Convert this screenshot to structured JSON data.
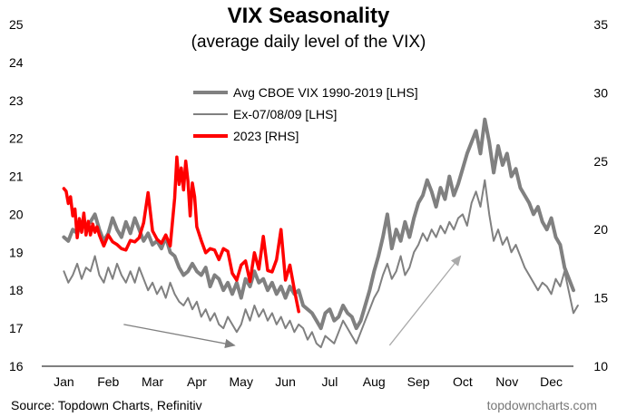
{
  "chart_data": {
    "type": "line",
    "title": "VIX Seasonality",
    "subtitle": "(average daily level of the VIX)",
    "x_categories": [
      "Jan",
      "Feb",
      "Mar",
      "Apr",
      "May",
      "Jun",
      "Jul",
      "Aug",
      "Sep",
      "Oct",
      "Nov",
      "Dec"
    ],
    "left_axis": {
      "ylim": [
        16,
        25
      ],
      "ticks": [
        16,
        17,
        18,
        19,
        20,
        21,
        22,
        23,
        24,
        25
      ]
    },
    "right_axis": {
      "ylim": [
        10,
        35
      ],
      "ticks": [
        10,
        15,
        20,
        25,
        30,
        35
      ]
    },
    "series": [
      {
        "name": "Avg CBOE VIX 1990-2019 [LHS]",
        "axis": "left",
        "color": "#808080",
        "width": 4,
        "x": [
          0,
          0.1,
          0.2,
          0.3,
          0.4,
          0.5,
          0.6,
          0.7,
          0.8,
          0.9,
          1.0,
          1.1,
          1.2,
          1.3,
          1.4,
          1.5,
          1.6,
          1.7,
          1.8,
          1.9,
          2.0,
          2.1,
          2.2,
          2.3,
          2.4,
          2.5,
          2.6,
          2.7,
          2.8,
          2.9,
          3.0,
          3.1,
          3.2,
          3.3,
          3.4,
          3.5,
          3.6,
          3.7,
          3.8,
          3.9,
          4.0,
          4.1,
          4.2,
          4.3,
          4.4,
          4.5,
          4.6,
          4.7,
          4.8,
          4.9,
          5.0,
          5.1,
          5.2,
          5.3,
          5.4,
          5.5,
          5.6,
          5.7,
          5.8,
          5.9,
          6.0,
          6.1,
          6.2,
          6.3,
          6.4,
          6.5,
          6.6,
          6.7,
          6.8,
          6.9,
          7.0,
          7.1,
          7.2,
          7.3,
          7.4,
          7.5,
          7.6,
          7.7,
          7.8,
          7.9,
          8.0,
          8.1,
          8.2,
          8.3,
          8.4,
          8.5,
          8.6,
          8.7,
          8.8,
          8.9,
          9.0,
          9.1,
          9.2,
          9.3,
          9.4,
          9.5,
          9.6,
          9.7,
          9.8,
          9.9,
          10.0,
          10.1,
          10.2,
          10.3,
          10.4,
          10.5,
          10.6,
          10.7,
          10.8,
          10.9,
          11.0,
          11.1,
          11.2,
          11.3,
          11.5
        ],
        "y": [
          19.4,
          19.3,
          19.6,
          19.5,
          19.8,
          19.7,
          19.8,
          20.0,
          19.6,
          19.3,
          19.5,
          19.9,
          19.6,
          19.4,
          19.8,
          19.5,
          19.9,
          19.6,
          19.3,
          19.5,
          19.2,
          19.3,
          19.1,
          19.4,
          19.0,
          18.9,
          18.6,
          18.4,
          18.5,
          18.7,
          18.5,
          18.4,
          18.6,
          18.1,
          18.4,
          18.3,
          18.0,
          18.2,
          17.9,
          18.2,
          17.8,
          18.3,
          18.1,
          18.5,
          18.2,
          18.3,
          18.0,
          18.2,
          17.9,
          18.1,
          17.8,
          18.1,
          17.9,
          18.0,
          17.6,
          17.5,
          17.4,
          17.2,
          17.0,
          17.4,
          17.5,
          17.2,
          17.3,
          17.6,
          17.4,
          17.3,
          17.0,
          17.2,
          17.6,
          18.0,
          18.5,
          18.9,
          19.4,
          20.0,
          19.1,
          19.6,
          19.3,
          19.8,
          19.4,
          19.9,
          20.3,
          20.5,
          20.9,
          20.6,
          20.2,
          20.7,
          20.4,
          21.0,
          20.5,
          20.8,
          21.2,
          21.6,
          21.9,
          22.2,
          21.6,
          22.5,
          21.9,
          21.1,
          21.8,
          21.3,
          21.6,
          21.0,
          21.2,
          20.7,
          20.5,
          20.3,
          20.0,
          20.2,
          19.8,
          19.6,
          19.9,
          19.4,
          19.2,
          18.6,
          18.0
        ]
      },
      {
        "name": "Ex-07/08/09 [LHS]",
        "axis": "left",
        "color": "#808080",
        "width": 2,
        "x": [
          0,
          0.1,
          0.2,
          0.3,
          0.4,
          0.5,
          0.6,
          0.7,
          0.8,
          0.9,
          1.0,
          1.1,
          1.2,
          1.3,
          1.4,
          1.5,
          1.6,
          1.7,
          1.8,
          1.9,
          2.0,
          2.1,
          2.2,
          2.3,
          2.4,
          2.5,
          2.6,
          2.7,
          2.8,
          2.9,
          3.0,
          3.1,
          3.2,
          3.3,
          3.4,
          3.5,
          3.6,
          3.7,
          3.8,
          3.9,
          4.0,
          4.1,
          4.2,
          4.3,
          4.4,
          4.5,
          4.6,
          4.7,
          4.8,
          4.9,
          5.0,
          5.1,
          5.2,
          5.3,
          5.4,
          5.5,
          5.6,
          5.7,
          5.8,
          5.9,
          6.0,
          6.1,
          6.2,
          6.3,
          6.4,
          6.5,
          6.6,
          6.7,
          6.8,
          6.9,
          7.0,
          7.1,
          7.2,
          7.3,
          7.4,
          7.5,
          7.6,
          7.7,
          7.8,
          7.9,
          8.0,
          8.1,
          8.2,
          8.3,
          8.4,
          8.5,
          8.6,
          8.7,
          8.8,
          8.9,
          9.0,
          9.1,
          9.2,
          9.3,
          9.4,
          9.5,
          9.6,
          9.7,
          9.8,
          9.9,
          10.0,
          10.1,
          10.2,
          10.3,
          10.4,
          10.5,
          10.6,
          10.7,
          10.8,
          10.9,
          11.0,
          11.1,
          11.2,
          11.3,
          11.5,
          11.6
        ],
        "y": [
          18.5,
          18.2,
          18.4,
          18.7,
          18.3,
          18.6,
          18.5,
          18.9,
          18.4,
          18.2,
          18.6,
          18.3,
          18.7,
          18.4,
          18.2,
          18.5,
          18.2,
          18.6,
          18.3,
          18.0,
          18.2,
          17.9,
          18.1,
          17.8,
          18.2,
          17.9,
          17.7,
          17.6,
          17.8,
          17.5,
          17.7,
          17.3,
          17.5,
          17.2,
          17.4,
          17.1,
          17.0,
          17.3,
          17.1,
          16.9,
          17.1,
          17.5,
          17.2,
          17.6,
          17.3,
          17.5,
          17.2,
          17.4,
          17.1,
          17.3,
          17.0,
          17.2,
          16.9,
          17.1,
          17.0,
          16.7,
          16.9,
          16.6,
          16.5,
          16.8,
          16.7,
          16.6,
          16.9,
          17.2,
          17.0,
          16.8,
          16.6,
          16.9,
          17.2,
          17.5,
          17.8,
          18.0,
          18.4,
          18.7,
          18.3,
          18.5,
          18.9,
          18.4,
          18.6,
          19.0,
          19.2,
          19.5,
          19.3,
          19.6,
          19.4,
          19.7,
          19.5,
          19.8,
          19.6,
          19.9,
          20.0,
          19.7,
          20.3,
          20.6,
          20.2,
          20.9,
          20.0,
          19.3,
          19.6,
          19.2,
          19.4,
          19.0,
          19.2,
          18.9,
          18.6,
          18.4,
          18.2,
          18.0,
          18.2,
          18.1,
          17.9,
          18.3,
          18.1,
          18.5,
          17.4,
          17.6
        ]
      },
      {
        "name": "2023 [RHS]",
        "axis": "right",
        "color": "#ff0000",
        "width": 3.5,
        "x": [
          0,
          0.05,
          0.1,
          0.15,
          0.2,
          0.25,
          0.3,
          0.35,
          0.4,
          0.45,
          0.5,
          0.55,
          0.6,
          0.65,
          0.7,
          0.75,
          0.8,
          0.85,
          0.9,
          0.95,
          1.0,
          1.1,
          1.2,
          1.3,
          1.4,
          1.5,
          1.6,
          1.7,
          1.8,
          1.9,
          2.0,
          2.1,
          2.2,
          2.3,
          2.4,
          2.5,
          2.55,
          2.6,
          2.65,
          2.7,
          2.75,
          2.8,
          2.85,
          2.9,
          2.95,
          3.0,
          3.1,
          3.2,
          3.3,
          3.4,
          3.5,
          3.6,
          3.7,
          3.8,
          3.9,
          4.0,
          4.1,
          4.2,
          4.3,
          4.4,
          4.5,
          4.6,
          4.7,
          4.8,
          4.9,
          5.0,
          5.1,
          5.2,
          5.3
        ],
        "y": [
          23.0,
          22.8,
          21.9,
          22.4,
          21.0,
          21.5,
          19.4,
          20.8,
          19.8,
          21.2,
          19.6,
          20.6,
          19.6,
          20.4,
          19.8,
          20.2,
          19.6,
          19.2,
          18.8,
          19.2,
          19.6,
          19.1,
          18.9,
          18.6,
          18.5,
          19.2,
          19.1,
          19.4,
          20.5,
          22.7,
          19.9,
          19.3,
          19.0,
          19.6,
          18.8,
          22.3,
          25.3,
          23.3,
          24.5,
          22.9,
          25.0,
          23.5,
          21.0,
          23.4,
          22.4,
          20.2,
          19.2,
          18.3,
          18.6,
          18.5,
          17.8,
          18.6,
          18.4,
          16.8,
          16.3,
          17.4,
          17.7,
          16.2,
          18.3,
          17.1,
          19.5,
          17.0,
          16.9,
          17.8,
          20.0,
          16.3,
          17.4,
          15.6,
          14.0
        ]
      }
    ],
    "annotations": [
      {
        "name": "downward-trend-arrow",
        "color": "#808080",
        "from": {
          "x": 1.35,
          "y_left": 17.1
        },
        "to": {
          "x": 3.85,
          "y_left": 16.55
        }
      },
      {
        "name": "upward-trend-arrow",
        "color": "#aaaaaa",
        "from": {
          "x": 7.35,
          "y_left": 16.55
        },
        "to": {
          "x": 8.95,
          "y_left": 18.9
        }
      }
    ]
  },
  "legend": [
    {
      "label": "Avg CBOE VIX 1990-2019 [LHS]",
      "color": "#808080",
      "width": 4
    },
    {
      "label": "Ex-07/08/09 [LHS]",
      "color": "#808080",
      "width": 2
    },
    {
      "label": "2023 [RHS]",
      "color": "#ff0000",
      "width": 4
    }
  ],
  "footer": {
    "source": "Source: Topdown Charts, Refinitiv",
    "brand": "topdowncharts.com"
  }
}
